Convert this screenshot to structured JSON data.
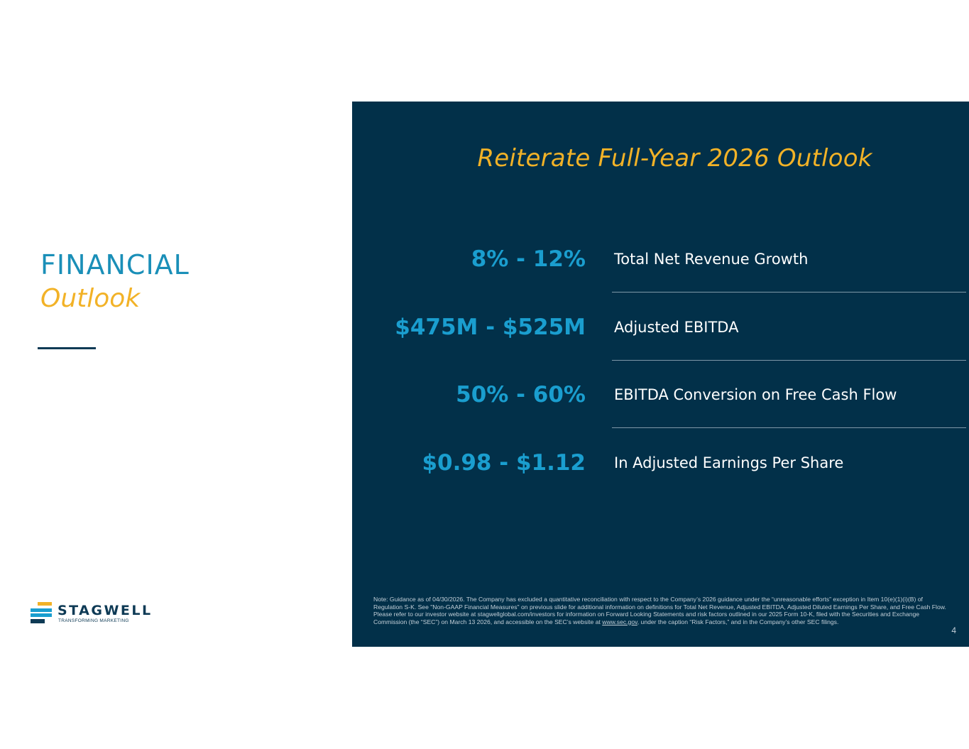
{
  "heading": {
    "line1": "FINANCIAL",
    "line2": "Outlook"
  },
  "logo": {
    "name": "STAGWELL",
    "tagline": "TRANSFORMING MARKETING"
  },
  "panel": {
    "title": "Reiterate Full-Year 2026 Outlook",
    "metrics": [
      {
        "value": "8% - 12%",
        "label": "Total Net Revenue Growth"
      },
      {
        "value": "$475M - $525M",
        "label": "Adjusted EBITDA"
      },
      {
        "value": "50% - 60%",
        "label": "EBITDA Conversion on Free Cash Flow"
      },
      {
        "value": "$0.98 - $1.12",
        "label": "In Adjusted Earnings Per Share"
      }
    ],
    "note_before_link": "Note: Guidance as of 04/30/2026. The Company has excluded a quantitative reconciliation with respect to the Company’s 2026 guidance under the “unreasonable efforts” exception in Item 10(e)(1)(i)(B) of Regulation S-K. See \"Non-GAAP Financial Measures\" on previous slide for additional information on definitions for Total Net Revenue, Adjusted EBITDA, Adjusted Diluted Earnings Per Share, and Free Cash Flow. Please refer to our investor website at stagwellglobal.com/investors for information on Forward Looking Statements and risk factors outlined in our 2025 Form 10-K, filed with the Securities and Exchange Commission (the “SEC”) on March 13 2026, and accessible on the SEC’s website at ",
    "note_link": "www.sec.gov",
    "note_after_link": ", under the caption “Risk Factors,” and in the Company’s other SEC filings.",
    "page_number": "4"
  },
  "colors": {
    "panel_bg": "#023049",
    "accent_blue": "#1a9ecf",
    "accent_gold": "#f2b227",
    "navy": "#0e3a55"
  }
}
